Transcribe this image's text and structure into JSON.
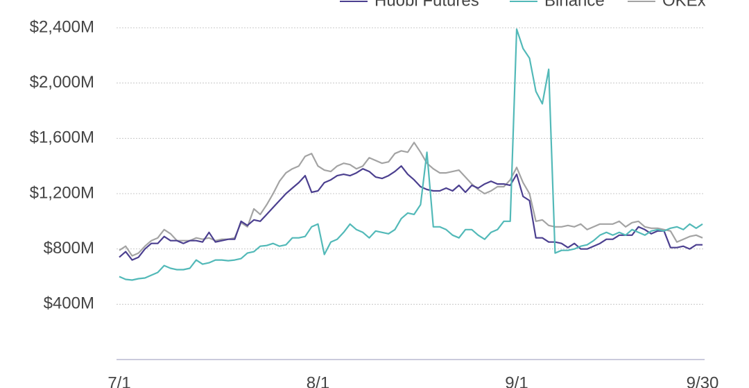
{
  "chart_data": {
    "type": "line",
    "categories": [
      "7/1",
      null,
      null,
      null,
      null,
      null,
      null,
      null,
      null,
      null,
      null,
      null,
      null,
      null,
      null,
      null,
      null,
      null,
      null,
      null,
      null,
      null,
      null,
      null,
      null,
      null,
      null,
      null,
      null,
      null,
      null,
      "8/1",
      null,
      null,
      null,
      null,
      null,
      null,
      null,
      null,
      null,
      null,
      null,
      null,
      null,
      null,
      null,
      null,
      null,
      null,
      null,
      null,
      null,
      null,
      null,
      null,
      null,
      null,
      null,
      null,
      null,
      null,
      "9/1",
      null,
      null,
      null,
      null,
      null,
      null,
      null,
      null,
      null,
      null,
      null,
      null,
      null,
      null,
      null,
      null,
      null,
      null,
      null,
      null,
      null,
      null,
      null,
      null,
      null,
      null,
      null,
      null,
      "9/30"
    ],
    "series": [
      {
        "name": "Huobi Futures",
        "color": "#4b3f8f",
        "values": [
          740,
          780,
          720,
          740,
          800,
          840,
          840,
          890,
          860,
          860,
          840,
          860,
          860,
          850,
          920,
          850,
          860,
          870,
          870,
          1000,
          970,
          1010,
          1000,
          1050,
          1100,
          1150,
          1200,
          1240,
          1280,
          1330,
          1210,
          1220,
          1280,
          1300,
          1330,
          1340,
          1330,
          1350,
          1380,
          1360,
          1320,
          1310,
          1330,
          1360,
          1400,
          1340,
          1300,
          1250,
          1230,
          1220,
          1220,
          1240,
          1220,
          1260,
          1210,
          1260,
          1240,
          1270,
          1290,
          1270,
          1270,
          1260,
          1340,
          1180,
          1150,
          880,
          880,
          850,
          850,
          840,
          810,
          840,
          800,
          800,
          820,
          840,
          870,
          870,
          900,
          900,
          900,
          960,
          940,
          910,
          930,
          930,
          810,
          810,
          820,
          800,
          830,
          830
        ]
      },
      {
        "name": "Binance",
        "color": "#52b9b8",
        "values": [
          600,
          580,
          575,
          585,
          590,
          610,
          630,
          680,
          660,
          650,
          650,
          660,
          720,
          690,
          700,
          720,
          720,
          715,
          720,
          730,
          770,
          780,
          820,
          825,
          840,
          820,
          830,
          880,
          880,
          890,
          960,
          980,
          760,
          850,
          870,
          920,
          980,
          940,
          920,
          880,
          930,
          920,
          910,
          940,
          1020,
          1060,
          1050,
          1120,
          1500,
          960,
          960,
          940,
          900,
          880,
          940,
          940,
          900,
          870,
          920,
          940,
          1000,
          1000,
          2390,
          2250,
          2180,
          1940,
          1850,
          2100,
          770,
          790,
          790,
          800,
          820,
          830,
          860,
          900,
          920,
          900,
          920,
          900,
          940,
          920,
          900,
          930,
          940,
          930,
          950,
          960,
          940,
          980,
          950,
          980
        ]
      },
      {
        "name": "OKEx",
        "color": "#a3a3a3",
        "values": [
          790,
          820,
          750,
          770,
          820,
          860,
          880,
          940,
          910,
          860,
          860,
          860,
          880,
          870,
          880,
          860,
          870,
          870,
          880,
          990,
          960,
          1090,
          1050,
          1120,
          1200,
          1290,
          1350,
          1380,
          1400,
          1470,
          1490,
          1400,
          1370,
          1360,
          1400,
          1420,
          1410,
          1380,
          1400,
          1460,
          1440,
          1420,
          1430,
          1490,
          1510,
          1500,
          1570,
          1500,
          1420,
          1380,
          1350,
          1350,
          1360,
          1370,
          1320,
          1270,
          1230,
          1200,
          1220,
          1250,
          1250,
          1300,
          1390,
          1280,
          1200,
          1000,
          1010,
          970,
          960,
          960,
          970,
          960,
          980,
          940,
          960,
          980,
          980,
          980,
          1000,
          960,
          990,
          1000,
          960,
          950,
          950,
          940,
          930,
          850,
          870,
          890,
          900,
          880
        ]
      }
    ],
    "ylim": [
      0,
      2400
    ],
    "yticks": [
      {
        "value": 400,
        "label": "$400M"
      },
      {
        "value": 800,
        "label": "$800M"
      },
      {
        "value": 1200,
        "label": "$1,200M"
      },
      {
        "value": 1600,
        "label": "$1,600M"
      },
      {
        "value": 2000,
        "label": "$2,000M"
      },
      {
        "value": 2400,
        "label": "$2,400M"
      }
    ],
    "grid": true,
    "legend": "top"
  }
}
